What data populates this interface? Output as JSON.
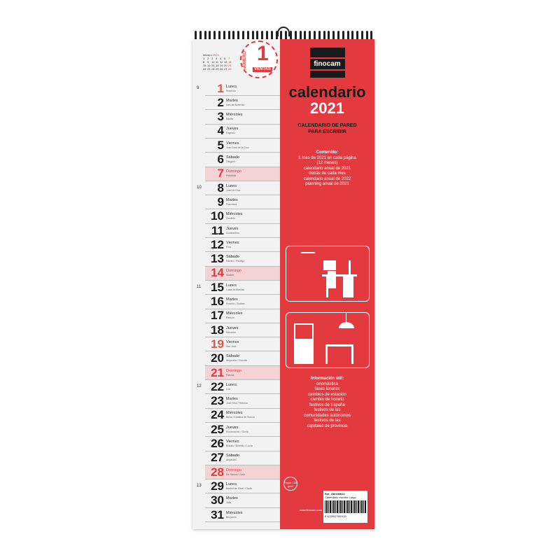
{
  "mini_calendar": {
    "month": "febrero",
    "year": "2021",
    "weeks": [
      [
        "1",
        "2",
        "3",
        "4",
        "5",
        "6",
        "7"
      ],
      [
        "8",
        "9",
        "10",
        "11",
        "12",
        "13",
        "14"
      ],
      [
        "15",
        "16",
        "17",
        "18",
        "19",
        "20",
        "21"
      ],
      [
        "22",
        "23",
        "24",
        "25",
        "26",
        "27",
        "28"
      ]
    ]
  },
  "badge": {
    "number": "1",
    "top": "NÚMERO",
    "en": "en",
    "ventas": "VENTAS"
  },
  "days": [
    {
      "n": "1",
      "d": "Lunes",
      "s": "Rosendo",
      "red": true
    },
    {
      "n": "2",
      "d": "Martes",
      "s": "Inés de Bohemia"
    },
    {
      "n": "3",
      "d": "Miércoles",
      "s": "Basilio"
    },
    {
      "n": "4",
      "d": "Jueves",
      "s": "Eugenio"
    },
    {
      "n": "5",
      "d": "Viernes",
      "s": "Juan José de la Cruz"
    },
    {
      "n": "6",
      "d": "Sábado",
      "s": "Olegario"
    },
    {
      "n": "7",
      "d": "Domingo",
      "s": "Felicidad",
      "sun": true
    },
    {
      "n": "8",
      "d": "Lunes",
      "s": "Juan de Dios"
    },
    {
      "n": "9",
      "d": "Martes",
      "s": "Francisca"
    },
    {
      "n": "10",
      "d": "Miércoles",
      "s": "Cándido"
    },
    {
      "n": "11",
      "d": "Jueves",
      "s": "Constantino"
    },
    {
      "n": "12",
      "d": "Viernes",
      "s": "Fina"
    },
    {
      "n": "13",
      "d": "Sábado",
      "s": "Ramiro / Rodrigo"
    },
    {
      "n": "14",
      "d": "Domingo",
      "s": "Matilde",
      "sun": true
    },
    {
      "n": "15",
      "d": "Lunes",
      "s": "Luisa de Marillac"
    },
    {
      "n": "16",
      "d": "Martes",
      "s": "Eusebio / Suárez"
    },
    {
      "n": "17",
      "d": "Miércoles",
      "s": "Patricio"
    },
    {
      "n": "18",
      "d": "Jueves",
      "s": "Salvador"
    },
    {
      "n": "19",
      "d": "Viernes",
      "s": "San José",
      "red": true
    },
    {
      "n": "20",
      "d": "Sábado",
      "s": "Alejandra / Claudia"
    },
    {
      "n": "21",
      "d": "Domingo",
      "s": "Fabiola",
      "sun": true
    },
    {
      "n": "22",
      "d": "Lunes",
      "s": "Lea"
    },
    {
      "n": "23",
      "d": "Martes",
      "s": "José Oriol / Rebeca"
    },
    {
      "n": "24",
      "d": "Miércoles",
      "s": "Berta / Catalina de Suecia"
    },
    {
      "n": "25",
      "d": "Jueves",
      "s": "Encarnación / Gloria"
    },
    {
      "n": "26",
      "d": "Viernes",
      "s": "Braulio / Dionisio / Lucía"
    },
    {
      "n": "27",
      "d": "Sábado",
      "s": "Alejandro"
    },
    {
      "n": "28",
      "d": "Domingo",
      "s": "De Ramos / Gala",
      "sun": true
    },
    {
      "n": "29",
      "d": "Lunes",
      "s": "Beatriz de Silva / Gladis"
    },
    {
      "n": "30",
      "d": "Martes",
      "s": "Julio"
    },
    {
      "n": "31",
      "d": "Miércoles",
      "s": "Benjamín"
    }
  ],
  "weeks": [
    {
      "w": "9",
      "day": 1
    },
    {
      "w": "10",
      "day": 8
    },
    {
      "w": "11",
      "day": 15
    },
    {
      "w": "12",
      "day": 22
    },
    {
      "w": "13",
      "day": 29
    }
  ],
  "cover": {
    "brand": "finocam",
    "title": "calendario",
    "year": "2021",
    "subtitle": "CALENDARIO DE PARED PARA ESCRIBIR",
    "contents_title": "Contenido:",
    "contents": [
      "1 mes de 2021 en cada página",
      "(12 meses)",
      "calendario anual de 2021",
      "detrás de cada mes",
      "calendario anual de 2022",
      "planning anual de 2021"
    ],
    "info_title": "Información útil:",
    "info": [
      "onomástica",
      "fases lunares",
      "cambios de estación",
      "cambio de horario",
      "festivos de España",
      "festivos de las",
      "comunidades autónomas",
      "festivos de las",
      "capitales de provincia"
    ],
    "paper": "Papel 120 g/m²",
    "ref": "Ref. 780180021",
    "ref_desc": "Calendario escribir Largo",
    "barcode": "8 422952 900131",
    "web": "www.finocam.com"
  },
  "colors": {
    "red": "#e23a3e",
    "dark": "#1a1a1a",
    "sunday_bg": "#f5d3d4"
  }
}
